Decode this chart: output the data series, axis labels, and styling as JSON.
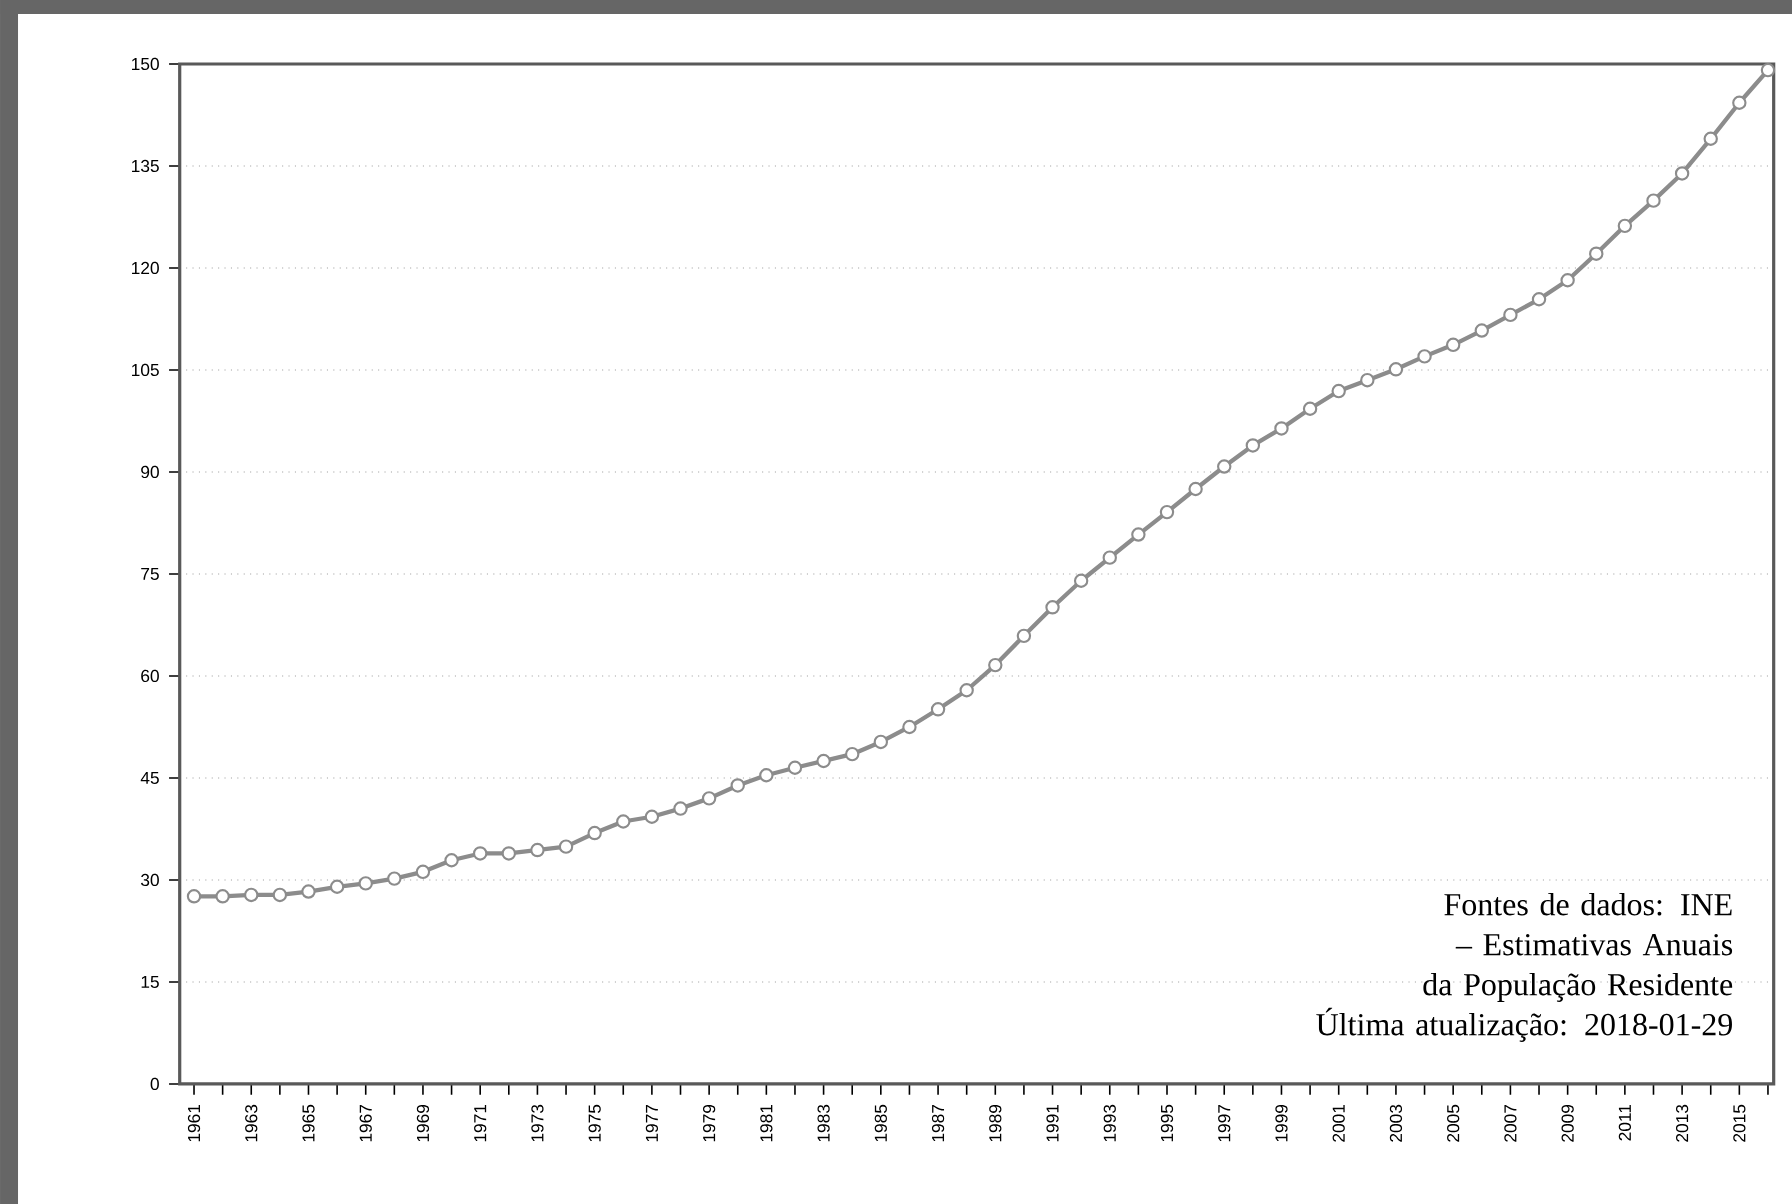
{
  "chart_data": {
    "type": "line",
    "categories": [
      "1961",
      null,
      "1963",
      null,
      "1965",
      null,
      "1967",
      null,
      "1969",
      null,
      "1971",
      null,
      "1973",
      null,
      "1975",
      null,
      "1977",
      null,
      "1979",
      null,
      "1981",
      null,
      "1983",
      null,
      "1985",
      null,
      "1987",
      null,
      "1989",
      null,
      "1991",
      null,
      "1993",
      null,
      "1995",
      null,
      "1997",
      null,
      "1999",
      null,
      "2001",
      null,
      "2003",
      null,
      "2005",
      null,
      "2007",
      null,
      "2009",
      null,
      "2011",
      null,
      "2013",
      null,
      "2015",
      null
    ],
    "series": [
      {
        "color": "#8c8c8c",
        "values": [
          27.6,
          27.6,
          27.8,
          27.8,
          28.3,
          29.0,
          29.5,
          30.2,
          31.2,
          32.9,
          33.9,
          33.9,
          34.4,
          34.9,
          36.9,
          38.6,
          39.3,
          40.5,
          42.0,
          43.9,
          45.4,
          46.5,
          47.5,
          48.5,
          50.3,
          52.5,
          55.1,
          57.9,
          61.6,
          65.9,
          70.1,
          74.0,
          77.4,
          80.8,
          84.1,
          87.5,
          90.8,
          93.9,
          96.4,
          99.3,
          101.9,
          103.5,
          105.1,
          107.0,
          108.7,
          110.8,
          113.1,
          115.4,
          118.2,
          122.1,
          126.2,
          129.9,
          133.9,
          139.0,
          144.3,
          149.1
        ]
      }
    ],
    "ylim": [
      0,
      150
    ],
    "yticks": [
      0,
      15,
      30,
      45,
      60,
      75,
      90,
      105,
      120,
      135,
      150
    ],
    "grid": "y",
    "marker": "circle",
    "line_style": "solid",
    "annotations": [
      "Fontes de dados: INE – Estimativas Anuais da População Residente",
      "Última atualização: 2018-01-29"
    ]
  }
}
